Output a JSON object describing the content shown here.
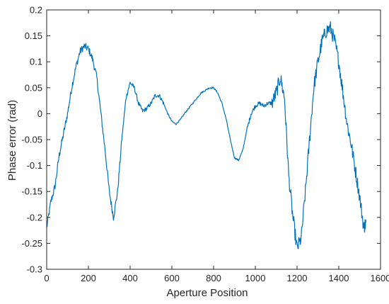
{
  "chart_data": {
    "type": "line",
    "title": "",
    "xlabel": "Aperture Position",
    "ylabel": "Phase error (rad)",
    "xlim": [
      0,
      1600
    ],
    "ylim": [
      -0.3,
      0.2
    ],
    "xticks": [
      0,
      200,
      400,
      600,
      800,
      1000,
      1200,
      1400,
      1600
    ],
    "yticks": [
      -0.3,
      -0.25,
      -0.2,
      -0.15,
      -0.1,
      -0.05,
      0,
      0.05,
      0.1,
      0.15,
      0.2
    ],
    "xtick_labels": [
      "0",
      "200",
      "400",
      "600",
      "800",
      "1000",
      "1200",
      "1400",
      "1600"
    ],
    "ytick_labels": [
      "-0.3",
      "-0.25",
      "-0.2",
      "-0.15",
      "-0.1",
      "-0.05",
      "0",
      "0.05",
      "0.1",
      "0.15",
      "0.2"
    ],
    "grid": false,
    "legend": "none",
    "series": [
      {
        "color": "#0072BD",
        "x": [
          0,
          20,
          40,
          60,
          80,
          100,
          120,
          140,
          160,
          180,
          200,
          220,
          240,
          260,
          280,
          300,
          320,
          340,
          360,
          380,
          400,
          420,
          440,
          460,
          480,
          500,
          520,
          540,
          560,
          580,
          600,
          620,
          640,
          660,
          680,
          700,
          720,
          740,
          760,
          780,
          800,
          820,
          840,
          860,
          880,
          900,
          920,
          940,
          960,
          980,
          1000,
          1020,
          1040,
          1060,
          1080,
          1100,
          1120,
          1140,
          1160,
          1180,
          1200,
          1220,
          1240,
          1260,
          1280,
          1300,
          1320,
          1340,
          1360,
          1380,
          1400,
          1420,
          1440,
          1460,
          1480,
          1500,
          1520,
          1530
        ],
        "y": [
          -0.22,
          -0.17,
          -0.14,
          -0.08,
          -0.04,
          0.0,
          0.05,
          0.09,
          0.12,
          0.13,
          0.125,
          0.105,
          0.07,
          0.0,
          -0.07,
          -0.15,
          -0.2,
          -0.15,
          -0.05,
          0.03,
          0.06,
          0.05,
          0.02,
          0.005,
          0.01,
          0.02,
          0.035,
          0.035,
          0.02,
          0.0,
          -0.015,
          -0.02,
          -0.012,
          0.0,
          0.01,
          0.02,
          0.03,
          0.04,
          0.045,
          0.05,
          0.05,
          0.04,
          0.02,
          -0.01,
          -0.05,
          -0.085,
          -0.09,
          -0.07,
          -0.03,
          0.0,
          0.015,
          0.02,
          0.015,
          0.02,
          0.02,
          0.04,
          0.07,
          0.03,
          -0.12,
          -0.2,
          -0.26,
          -0.24,
          -0.15,
          -0.05,
          0.05,
          0.1,
          0.14,
          0.16,
          0.165,
          0.14,
          0.1,
          0.04,
          -0.02,
          -0.06,
          -0.11,
          -0.16,
          -0.22,
          -0.21
        ]
      }
    ]
  }
}
